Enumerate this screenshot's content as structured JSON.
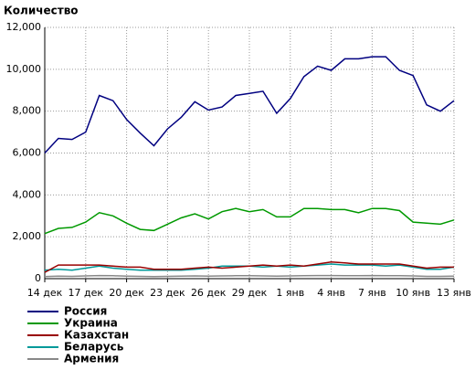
{
  "chart_data": {
    "type": "line",
    "title": "Количество",
    "categories": [
      "14 дек",
      null,
      null,
      "17 дек",
      null,
      null,
      "20 дек",
      null,
      null,
      "23 дек",
      null,
      null,
      "26 дек",
      null,
      null,
      "29 дек",
      null,
      null,
      "1 янв",
      null,
      null,
      "4 янв",
      null,
      null,
      "7 янв",
      null,
      null,
      "10 янв",
      null,
      null,
      "13 янв"
    ],
    "series": [
      {
        "name": "Россия",
        "color": "#000080",
        "values": [
          6000,
          6700,
          6650,
          7000,
          8750,
          8500,
          7600,
          6950,
          6350,
          7150,
          7700,
          8450,
          8050,
          8200,
          8750,
          8850,
          8950,
          7900,
          8600,
          9650,
          10150,
          9950,
          10500,
          10500,
          10600,
          10600,
          9950,
          9700,
          8300,
          8000,
          8500
        ]
      },
      {
        "name": "Украина",
        "color": "#009900",
        "values": [
          2150,
          2400,
          2450,
          2700,
          3150,
          3000,
          2650,
          2350,
          2300,
          2600,
          2900,
          3100,
          2850,
          3200,
          3350,
          3200,
          3300,
          2950,
          2950,
          3350,
          3350,
          3300,
          3300,
          3150,
          3350,
          3350,
          3250,
          2700,
          2650,
          2600,
          2800
        ]
      },
      {
        "name": "Казахстан",
        "color": "#990000",
        "values": [
          300,
          650,
          650,
          650,
          650,
          600,
          550,
          550,
          450,
          450,
          450,
          500,
          550,
          500,
          550,
          600,
          650,
          600,
          650,
          600,
          700,
          800,
          750,
          700,
          700,
          700,
          700,
          600,
          500,
          550,
          550
        ]
      },
      {
        "name": "Беларусь",
        "color": "#009999",
        "values": [
          400,
          450,
          400,
          500,
          600,
          500,
          450,
          400,
          400,
          400,
          400,
          450,
          500,
          600,
          600,
          600,
          550,
          600,
          550,
          600,
          650,
          700,
          650,
          650,
          650,
          600,
          650,
          550,
          450,
          450,
          550
        ]
      },
      {
        "name": "Армения",
        "color": "#888888",
        "values": [
          100,
          120,
          110,
          130,
          150,
          140,
          120,
          110,
          100,
          110,
          120,
          130,
          120,
          130,
          140,
          140,
          130,
          120,
          130,
          140,
          150,
          150,
          140,
          140,
          150,
          140,
          140,
          130,
          110,
          110,
          120
        ]
      }
    ],
    "ylim": [
      0,
      12000
    ],
    "yticks": [
      0,
      {
        "value": 2000,
        "label": "2,000"
      },
      {
        "value": 4000,
        "label": "4,000"
      },
      {
        "value": 6000,
        "label": "6,000"
      },
      {
        "value": 8000,
        "label": "8,000"
      },
      {
        "value": 10000,
        "label": "10,000"
      },
      {
        "value": 12000,
        "label": "12,000"
      }
    ],
    "grid": true
  }
}
